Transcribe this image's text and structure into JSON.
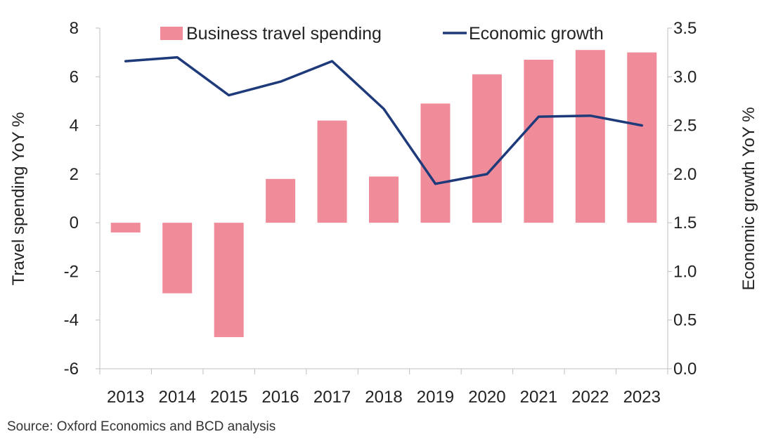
{
  "chart_data": {
    "type": "bar",
    "categories": [
      "2013",
      "2014",
      "2015",
      "2016",
      "2017",
      "2018",
      "2019",
      "2020",
      "2021",
      "2022",
      "2023"
    ],
    "series": [
      {
        "name": "Business travel spending",
        "type": "bar",
        "axis": "left",
        "color": "#f08c99",
        "values": [
          -0.4,
          -2.9,
          -4.7,
          1.8,
          4.2,
          1.9,
          4.9,
          6.1,
          6.7,
          7.1,
          7.0
        ]
      },
      {
        "name": "Economic growth",
        "type": "line",
        "axis": "right",
        "color": "#1f3a7a",
        "values": [
          3.16,
          3.2,
          2.81,
          2.95,
          3.16,
          2.67,
          1.9,
          2.0,
          2.59,
          2.6,
          2.5
        ]
      }
    ],
    "ylabel": "Travel spending YoY %",
    "ylabel_right": "Economic growth YoY %",
    "ylim": [
      -6,
      8
    ],
    "ylim_right": [
      0,
      3.5
    ],
    "yticks": [
      "8",
      "6",
      "4",
      "2",
      "0",
      "-2",
      "-4",
      "-6"
    ],
    "yticks_right": [
      "3.5",
      "3.0",
      "2.5",
      "2.0",
      "1.5",
      "1.0",
      "0.5",
      "0.0"
    ],
    "legend_position": "top",
    "grid": false
  },
  "source_note": "Source: Oxford Economics and BCD analysis"
}
